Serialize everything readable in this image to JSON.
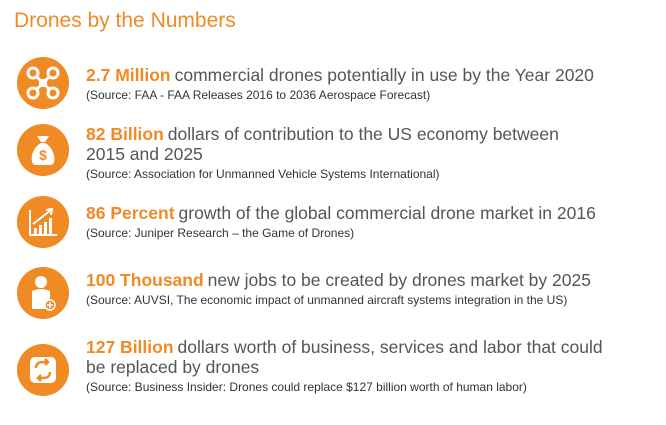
{
  "header": {
    "title": "Drones by the Numbers"
  },
  "items": [
    {
      "highlight": "2.7 Million",
      "lines": [
        "commercial drones potentially in use by the Year 2020"
      ],
      "source": "(Source: FAA - FAA Releases 2016 to 2036 Aerospace Forecast)"
    },
    {
      "highlight": "82 Billion",
      "lines": [
        "dollars of contribution to the US economy between",
        "2015 and 2025"
      ],
      "source": "(Source: Association for Unmanned Vehicle Systems International)"
    },
    {
      "highlight": "86 Percent",
      "lines": [
        "growth of the global commercial drone market in 2016"
      ],
      "source": "(Source: Juniper Research – the Game of Drones)"
    },
    {
      "highlight": "100 Thousand",
      "lines": [
        "new jobs to be created by drones market by 2025"
      ],
      "source": "(Source: AUVSI, The economic impact of unmanned aircraft systems integration in the US)"
    },
    {
      "highlight": "127 Billion",
      "lines": [
        "dollars worth of business, services and labor that could",
        "be replaced by drones"
      ],
      "source": "(Source: Business Insider: Drones could replace $127 billion worth of human labor)"
    }
  ]
}
